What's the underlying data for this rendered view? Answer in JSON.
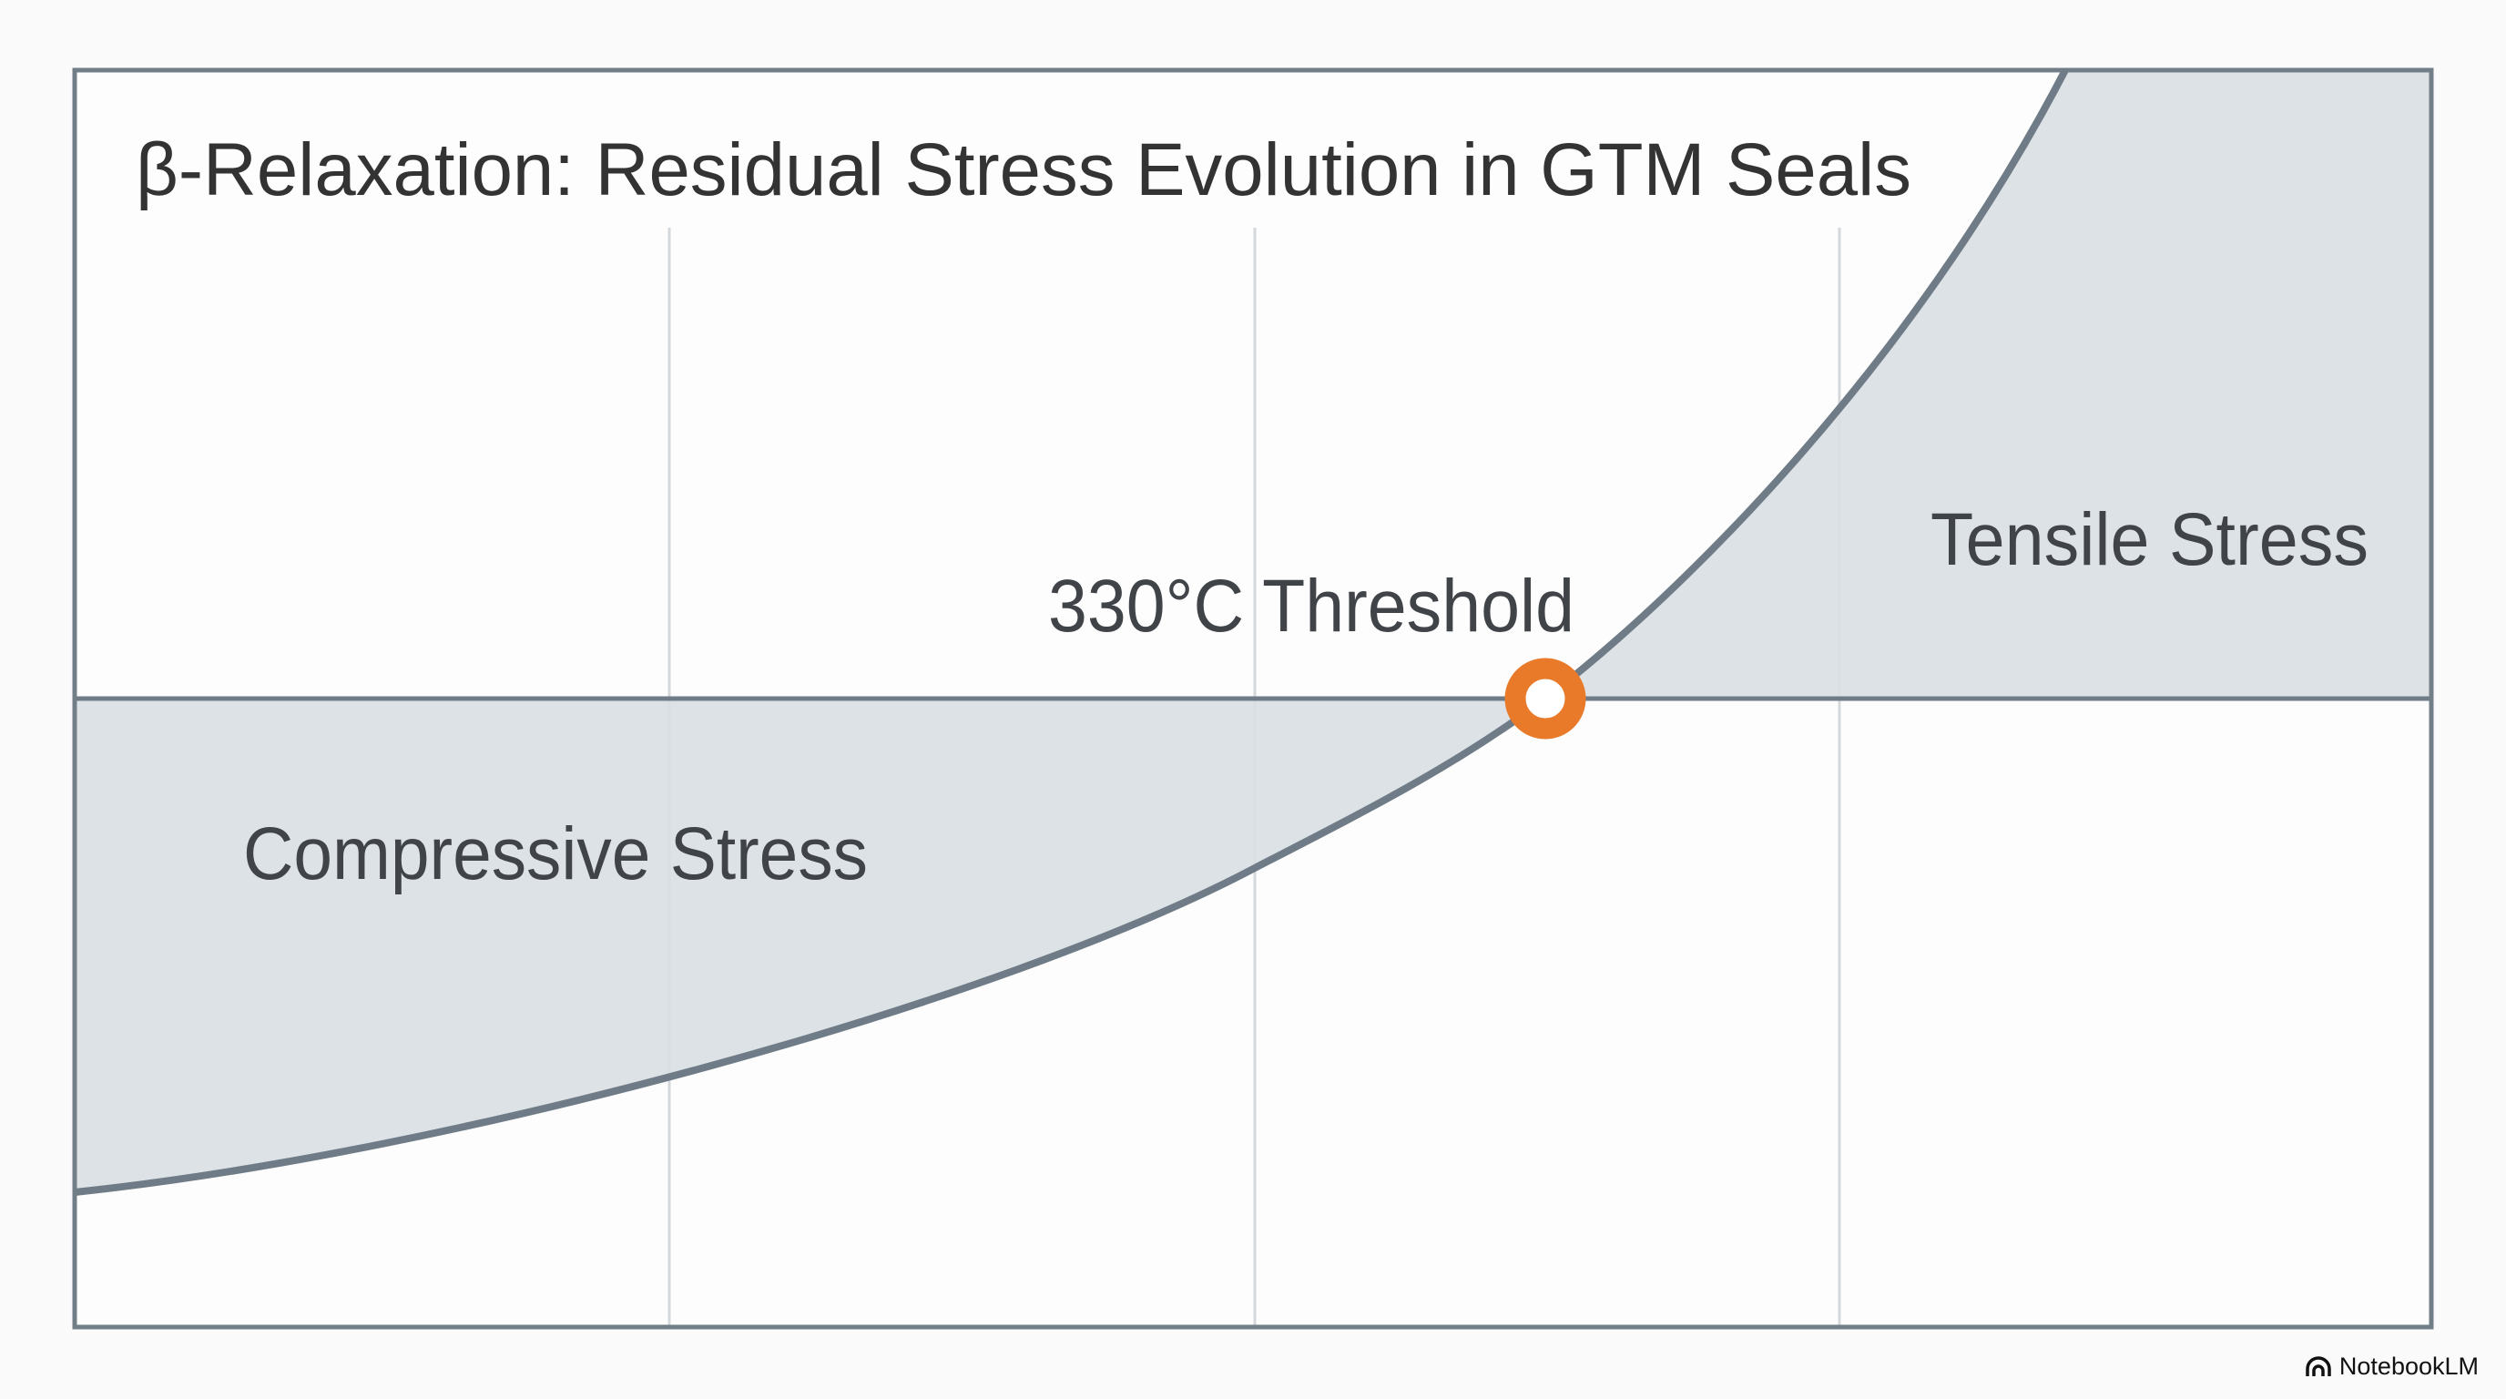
{
  "chart_data": {
    "type": "area",
    "title": "β-Relaxation: Residual Stress Evolution in GTM Seals",
    "xlabel": "",
    "ylabel": "",
    "grid": true,
    "threshold": {
      "label": "330°C Threshold",
      "value_c": 330
    },
    "regions": [
      {
        "name": "Compressive Stress",
        "sign": "negative"
      },
      {
        "name": "Tensile Stress",
        "sign": "positive"
      }
    ],
    "series": [
      {
        "name": "Residual stress",
        "trend": "monotonic increasing, crosses zero at threshold"
      }
    ]
  },
  "colors": {
    "curve": "#6f7c87",
    "fill": "#d9dfe3",
    "marker": "#e87a2a",
    "grid": "#cfd3d6"
  },
  "brand": {
    "name": "NotebookLM",
    "icon": "notebooklm-logo-icon"
  }
}
